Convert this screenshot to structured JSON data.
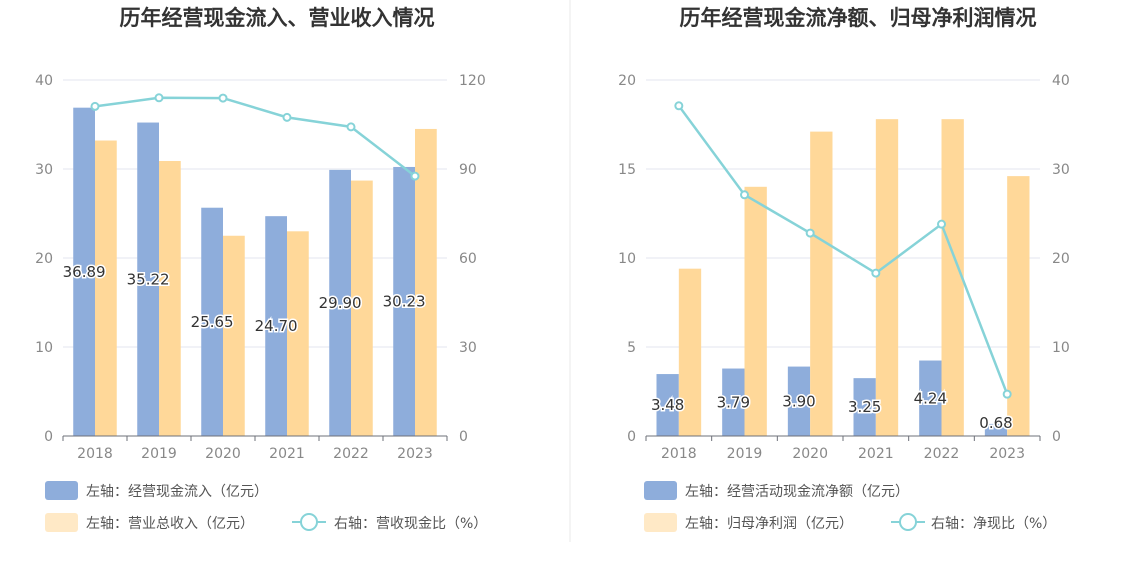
{
  "colors": {
    "left_bar": "#8eaddb",
    "right_bar": "#ffd899",
    "legend_right_bar": "#ffe9c6",
    "line": "#86d3d8",
    "grid": "#e3e6ef",
    "axis_text": "#888888",
    "title": "#333333",
    "divider": "#e9e9e9"
  },
  "chart_data": [
    {
      "type": "bar",
      "title": "历年经营现金流入、营业收入情况",
      "categories": [
        "2018",
        "2019",
        "2020",
        "2021",
        "2022",
        "2023"
      ],
      "left_axis": {
        "ylim": [
          0,
          40
        ],
        "ticks": [
          "0",
          "10",
          "20",
          "30",
          "40"
        ]
      },
      "right_axis": {
        "ylim": [
          0,
          120
        ],
        "ticks": [
          "0",
          "30",
          "60",
          "90",
          "120"
        ]
      },
      "series": [
        {
          "name": "左轴：经营现金流入（亿元）",
          "kind": "bar",
          "axis": "left",
          "values": [
            36.89,
            35.22,
            25.65,
            24.7,
            29.9,
            30.23
          ],
          "labels": [
            "36.89",
            "35.22",
            "25.65",
            "24.70",
            "29.90",
            "30.23"
          ]
        },
        {
          "name": "左轴：营业总收入（亿元）",
          "kind": "bar",
          "axis": "left",
          "values": [
            33.2,
            30.9,
            22.5,
            23.0,
            28.7,
            34.5
          ]
        },
        {
          "name": "右轴：营收现金比（%）",
          "kind": "line",
          "axis": "right",
          "values": [
            111.1,
            114.0,
            113.9,
            107.4,
            104.2,
            87.6
          ]
        }
      ],
      "grid": true
    },
    {
      "type": "bar",
      "title": "历年经营现金流净额、归母净利润情况",
      "categories": [
        "2018",
        "2019",
        "2020",
        "2021",
        "2022",
        "2023"
      ],
      "left_axis": {
        "ylim": [
          0,
          20
        ],
        "ticks": [
          "0",
          "5",
          "10",
          "15",
          "20"
        ]
      },
      "right_axis": {
        "ylim": [
          0,
          40
        ],
        "ticks": [
          "0",
          "10",
          "20",
          "30",
          "40"
        ]
      },
      "series": [
        {
          "name": "左轴：经营活动现金流净额（亿元）",
          "kind": "bar",
          "axis": "left",
          "values": [
            3.48,
            3.79,
            3.9,
            3.25,
            4.24,
            0.68
          ],
          "labels": [
            "3.48",
            "3.79",
            "3.90",
            "3.25",
            "4.24",
            "0.68"
          ]
        },
        {
          "name": "左轴：归母净利润（亿元）",
          "kind": "bar",
          "axis": "left",
          "values": [
            9.4,
            14.0,
            17.1,
            17.8,
            17.8,
            14.6
          ]
        },
        {
          "name": "右轴：净现比（%）",
          "kind": "line",
          "axis": "right",
          "values": [
            37.1,
            27.1,
            22.8,
            18.3,
            23.8,
            4.7
          ]
        }
      ],
      "grid": true
    }
  ]
}
